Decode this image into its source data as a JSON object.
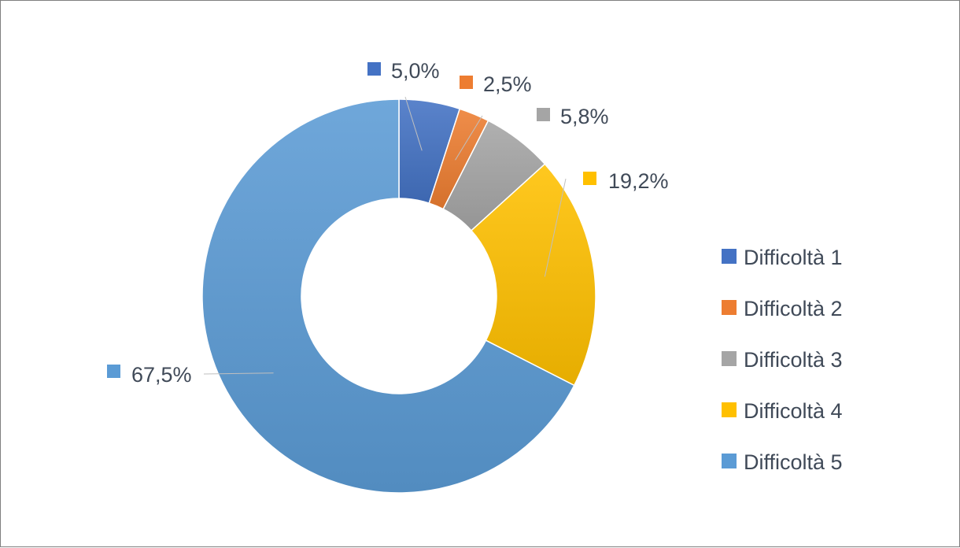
{
  "chart_data": {
    "type": "pie",
    "donut": true,
    "categories": [
      "Difficoltà 1",
      "Difficoltà 2",
      "Difficoltà 3",
      "Difficoltà 4",
      "Difficoltà 5"
    ],
    "values": [
      5.0,
      2.5,
      5.8,
      19.2,
      67.5
    ],
    "labels": [
      "5,0%",
      "2,5%",
      "5,8%",
      "19,2%",
      "67,5%"
    ],
    "colors": [
      "#4472c4",
      "#ed7d31",
      "#a5a5a5",
      "#ffc000",
      "#5b9bd5"
    ],
    "title": "",
    "legend_position": "right"
  }
}
